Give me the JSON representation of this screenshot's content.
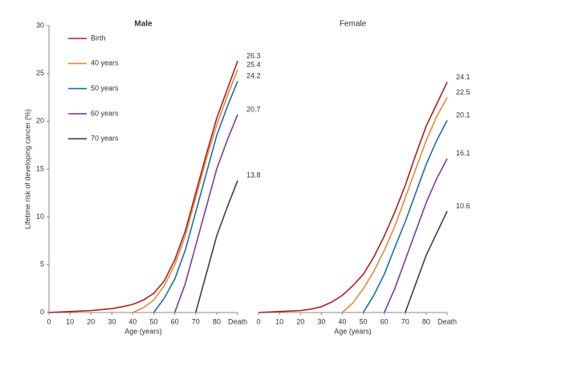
{
  "chart_data": [
    {
      "type": "line",
      "title": "Male",
      "x_label": "Age (years)",
      "y_label": "Lifetime risk of developing cancer (%)",
      "x": [
        0,
        5,
        10,
        15,
        20,
        25,
        30,
        35,
        40,
        45,
        50,
        55,
        60,
        65,
        70,
        75,
        80,
        85,
        90
      ],
      "xlim": [
        0,
        90
      ],
      "xticks": [
        0,
        10,
        20,
        30,
        40,
        50,
        60,
        70,
        80,
        {
          "value": 90,
          "label": "Death"
        }
      ],
      "ylim": [
        0,
        30
      ],
      "yticks": [
        0,
        5,
        10,
        15,
        20,
        25,
        30
      ],
      "legend": "upper left",
      "series": [
        {
          "name": "Birth",
          "color": "#b01c1c",
          "values": [
            0,
            0.05,
            0.1,
            0.15,
            0.2,
            0.3,
            0.4,
            0.6,
            0.85,
            1.3,
            2.0,
            3.3,
            5.5,
            8.5,
            12.5,
            16.5,
            20.3,
            23.3,
            26.3
          ]
        },
        {
          "name": "40 years",
          "color": "#e08a3c",
          "values": [
            null,
            null,
            null,
            null,
            null,
            null,
            null,
            null,
            0,
            0.5,
            1.3,
            2.8,
            5,
            8,
            12,
            16,
            19.6,
            22.6,
            25.4
          ]
        },
        {
          "name": "50 years",
          "color": "#1a6fa8",
          "values": [
            null,
            null,
            null,
            null,
            null,
            null,
            null,
            null,
            null,
            null,
            0,
            1.5,
            3.5,
            6.5,
            10.5,
            14.5,
            18.5,
            21.5,
            24.2
          ]
        },
        {
          "name": "60 years",
          "color": "#7a3d9e",
          "values": [
            null,
            null,
            null,
            null,
            null,
            null,
            null,
            null,
            null,
            null,
            null,
            null,
            0,
            3,
            7,
            11,
            15,
            18,
            20.7
          ]
        },
        {
          "name": "70 years",
          "color": "#404040",
          "values": [
            null,
            null,
            null,
            null,
            null,
            null,
            null,
            null,
            null,
            null,
            null,
            null,
            null,
            null,
            0,
            4,
            8,
            11,
            13.8
          ]
        }
      ]
    },
    {
      "type": "line",
      "title": "Female",
      "x_label": "Age (years)",
      "x": [
        0,
        5,
        10,
        15,
        20,
        25,
        30,
        35,
        40,
        45,
        50,
        55,
        60,
        65,
        70,
        75,
        80,
        85,
        90
      ],
      "xlim": [
        0,
        90
      ],
      "xticks": [
        0,
        10,
        20,
        30,
        40,
        50,
        60,
        70,
        80,
        {
          "value": 90,
          "label": "Death"
        }
      ],
      "ylim": [
        0,
        30
      ],
      "series": [
        {
          "color": "#b01c1c",
          "values": [
            0,
            0.05,
            0.1,
            0.15,
            0.2,
            0.35,
            0.6,
            1.1,
            1.8,
            2.8,
            4,
            5.8,
            8,
            10.5,
            13.3,
            16.5,
            19.5,
            21.8,
            24.1
          ]
        },
        {
          "color": "#e08a3c",
          "values": [
            null,
            null,
            null,
            null,
            null,
            null,
            null,
            null,
            0,
            1,
            2.5,
            4.3,
            6.5,
            9,
            12,
            15,
            18,
            20.5,
            22.5
          ]
        },
        {
          "color": "#1a6fa8",
          "values": [
            null,
            null,
            null,
            null,
            null,
            null,
            null,
            null,
            null,
            null,
            0,
            1.8,
            4,
            6.8,
            9.5,
            12.5,
            15.5,
            18,
            20.1
          ]
        },
        {
          "color": "#7a3d9e",
          "values": [
            null,
            null,
            null,
            null,
            null,
            null,
            null,
            null,
            null,
            null,
            null,
            null,
            0,
            2.5,
            5.5,
            8.5,
            11.5,
            14,
            16.1
          ]
        },
        {
          "color": "#404040",
          "values": [
            null,
            null,
            null,
            null,
            null,
            null,
            null,
            null,
            null,
            null,
            null,
            null,
            null,
            null,
            0,
            3,
            6,
            8.3,
            10.6
          ]
        }
      ]
    }
  ]
}
